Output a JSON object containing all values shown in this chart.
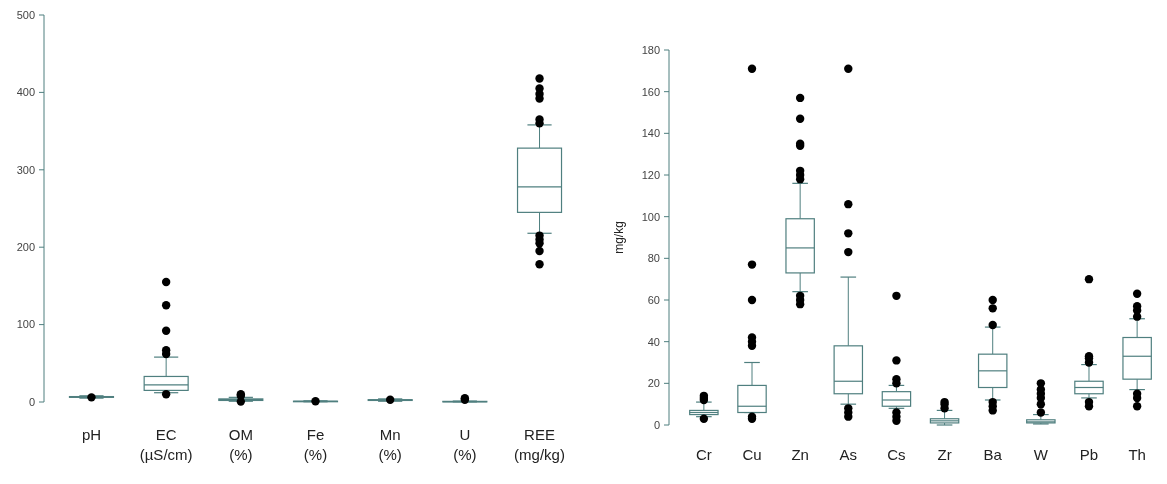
{
  "chart_data": [
    {
      "type": "box",
      "categories": [
        "pH",
        "EC\n(µS/cm)",
        "OM\n(%)",
        "Fe\n(%)",
        "Mn\n(%)",
        "U\n(%)",
        "REE\n(mg/kg)"
      ],
      "color": "#4f7f7f",
      "ylim": [
        0,
        500
      ],
      "yticks": [
        0,
        100,
        200,
        300,
        400,
        500
      ],
      "grid": false,
      "boxes": [
        {
          "low": 5,
          "q1": 6,
          "median": 6.5,
          "q3": 7,
          "high": 8,
          "outliers": [
            6
          ]
        },
        {
          "low": 12,
          "q1": 15,
          "median": 22,
          "q3": 33,
          "high": 58,
          "outliers": [
            10,
            62,
            67,
            92,
            125,
            155
          ]
        },
        {
          "low": 1,
          "q1": 2,
          "median": 3,
          "q3": 4,
          "high": 6,
          "outliers": [
            0.5,
            8,
            10
          ]
        },
        {
          "low": 0.3,
          "q1": 0.5,
          "median": 0.8,
          "q3": 1,
          "high": 1.5,
          "outliers": [
            1
          ]
        },
        {
          "low": 1,
          "q1": 2,
          "median": 2.5,
          "q3": 3,
          "high": 4,
          "outliers": [
            3
          ]
        },
        {
          "low": 0.2,
          "q1": 0.4,
          "median": 0.6,
          "q3": 0.8,
          "high": 1.2,
          "outliers": [
            3,
            5
          ]
        },
        {
          "low": 218,
          "q1": 245,
          "median": 278,
          "q3": 328,
          "high": 358,
          "outliers": [
            178,
            195,
            205,
            210,
            215,
            360,
            365,
            392,
            398,
            405,
            418
          ]
        }
      ]
    },
    {
      "type": "box",
      "categories": [
        "Cr",
        "Cu",
        "Zn",
        "As",
        "Cs",
        "Zr",
        "Ba",
        "W",
        "Pb",
        "Th"
      ],
      "ylabel": "mg/kg",
      "color": "#4f7f7f",
      "ylim": [
        0,
        180
      ],
      "yticks": [
        0,
        20,
        40,
        60,
        80,
        100,
        120,
        140,
        160,
        180
      ],
      "grid": false,
      "boxes": [
        {
          "low": 4,
          "q1": 5,
          "median": 6,
          "q3": 7,
          "high": 11,
          "outliers": [
            3,
            12,
            13,
            14
          ]
        },
        {
          "low": 6,
          "q1": 6,
          "median": 9,
          "q3": 19,
          "high": 30,
          "outliers": [
            3,
            4,
            38,
            40,
            42,
            60,
            77,
            171
          ]
        },
        {
          "low": 64,
          "q1": 73,
          "median": 85,
          "q3": 99,
          "high": 116,
          "outliers": [
            58,
            60,
            62,
            118,
            120,
            122,
            134,
            135,
            147,
            157
          ]
        },
        {
          "low": 10,
          "q1": 15,
          "median": 21,
          "q3": 38,
          "high": 71,
          "outliers": [
            4,
            6,
            8,
            83,
            92,
            106,
            171
          ]
        },
        {
          "low": 8,
          "q1": 9,
          "median": 12,
          "q3": 16,
          "high": 19,
          "outliers": [
            2,
            4,
            6,
            20,
            22,
            31,
            62
          ]
        },
        {
          "low": 0,
          "q1": 1,
          "median": 2,
          "q3": 3,
          "high": 7,
          "outliers": [
            8,
            10,
            11
          ]
        },
        {
          "low": 12,
          "q1": 18,
          "median": 26,
          "q3": 34,
          "high": 47,
          "outliers": [
            7,
            9,
            11,
            48,
            56,
            60
          ]
        },
        {
          "low": 0.5,
          "q1": 1,
          "median": 1.5,
          "q3": 2.5,
          "high": 5,
          "outliers": [
            6,
            10,
            13,
            15,
            17,
            20
          ]
        },
        {
          "low": 13,
          "q1": 15,
          "median": 18,
          "q3": 21,
          "high": 29,
          "outliers": [
            9,
            11,
            30,
            32,
            33,
            70
          ]
        },
        {
          "low": 17,
          "q1": 22,
          "median": 33,
          "q3": 42,
          "high": 51,
          "outliers": [
            9,
            13,
            15,
            52,
            55,
            57,
            63
          ]
        }
      ]
    }
  ]
}
